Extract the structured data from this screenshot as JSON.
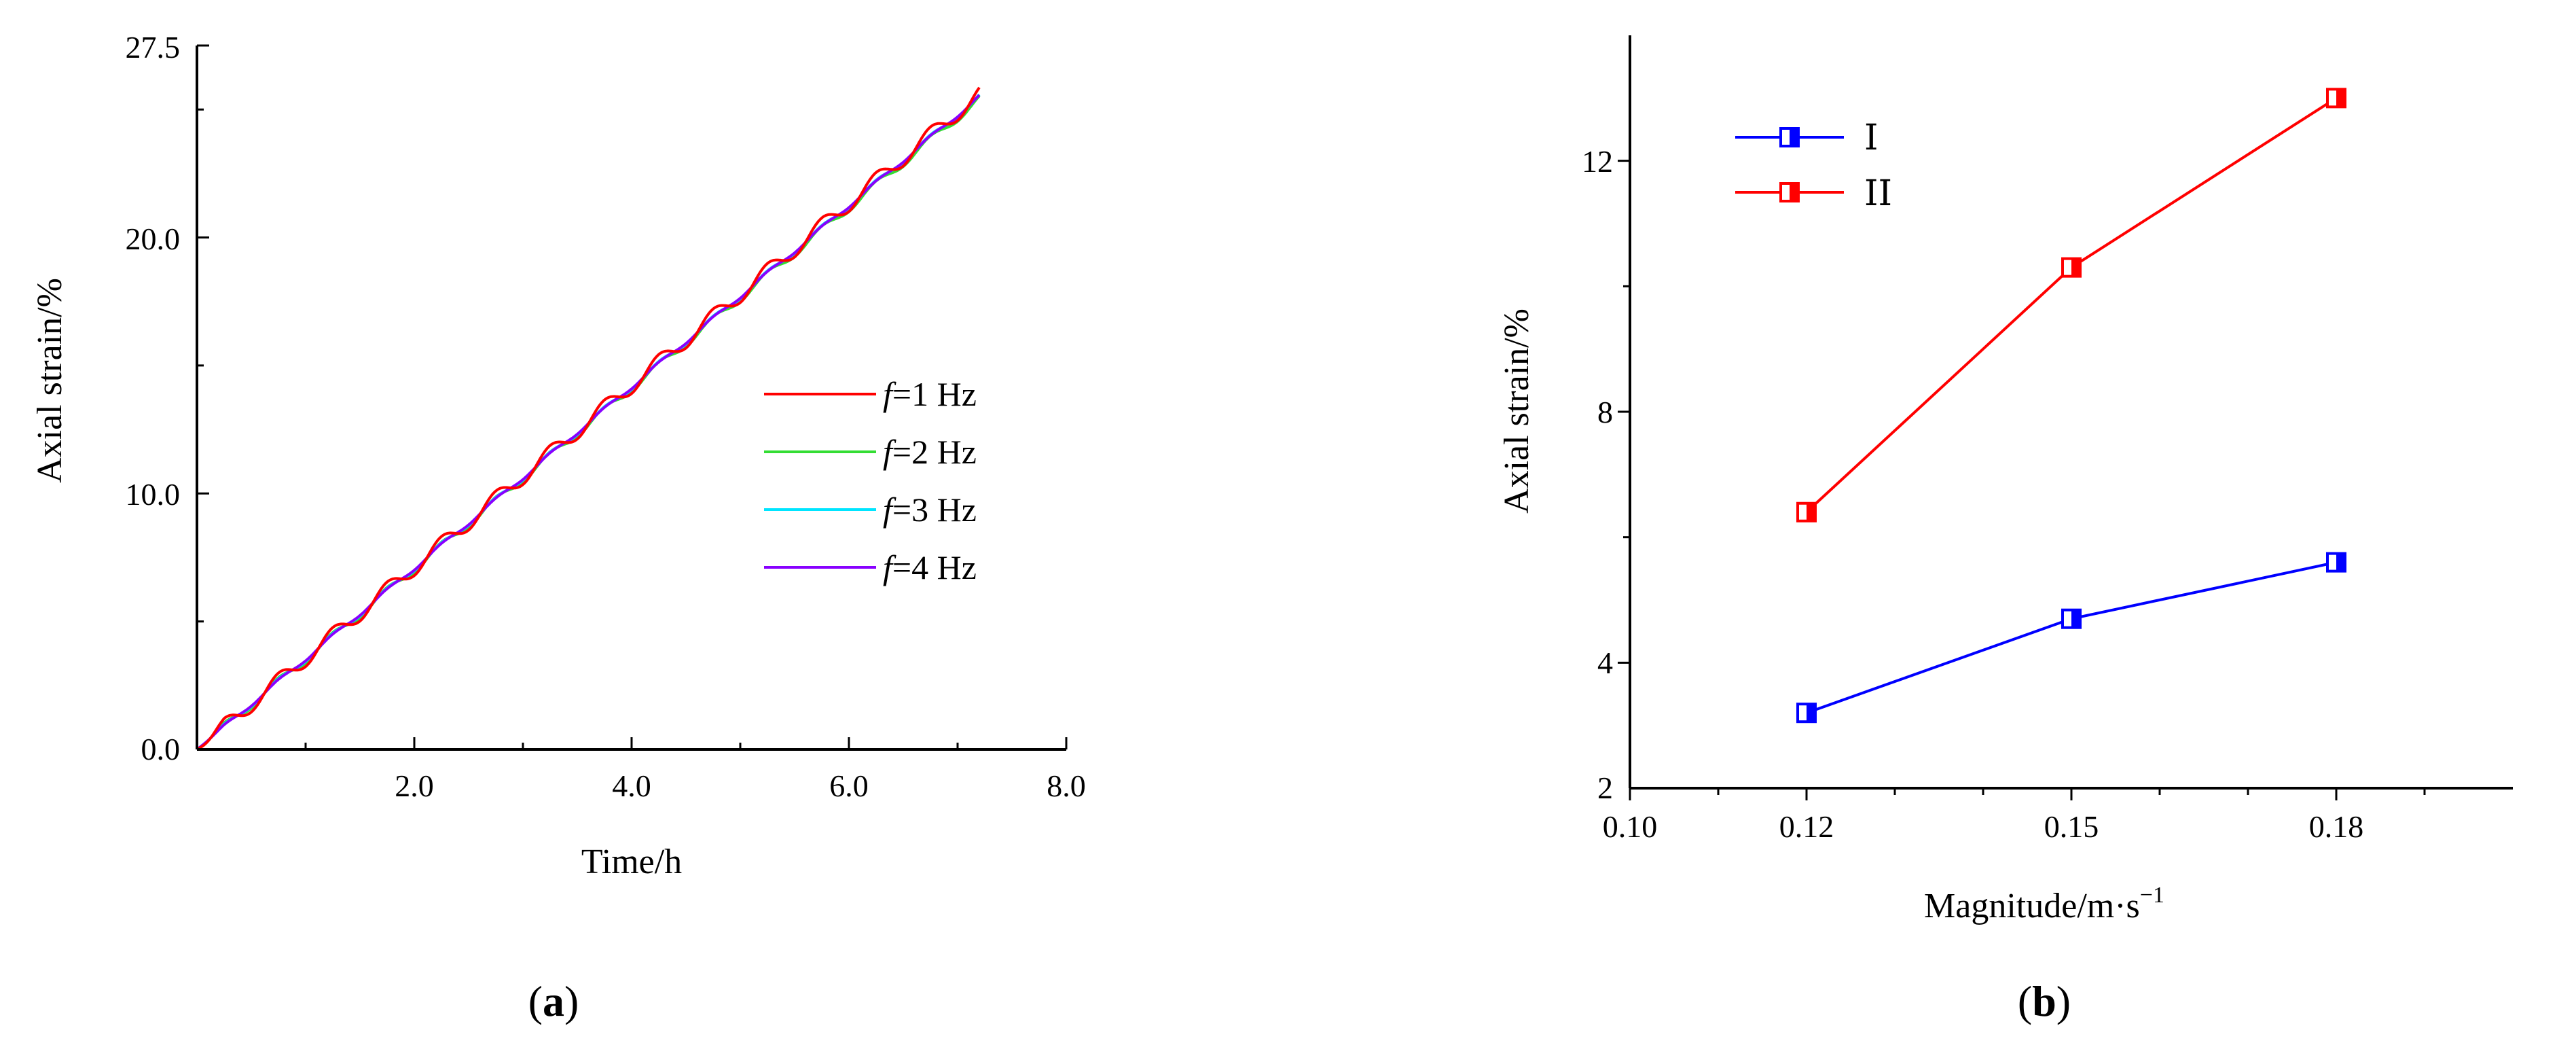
{
  "chart_data": [
    {
      "type": "line",
      "panel": "(a)",
      "panel_letter": "a",
      "xlabel": "Time/h",
      "ylabel": "Axial strain/%",
      "xlim": [
        0,
        8
      ],
      "ylim": [
        0,
        27.5
      ],
      "xticks": [
        2,
        4,
        6,
        8
      ],
      "xtick_labels": [
        "2.0",
        "4.0",
        "6.0",
        "8.0"
      ],
      "yticks": [
        0,
        10,
        20,
        27.5
      ],
      "ytick_labels": [
        "0.0",
        "10.0",
        "20.0",
        "27.5"
      ],
      "x_minor_step": 1,
      "y_minor_step": 5,
      "legend_position": "center-right",
      "series": [
        {
          "name": "f=1 Hz",
          "label_italic": "f",
          "label_rest": "=1 Hz",
          "color": "#ff0000",
          "frequency_hz": 1,
          "x_end": 7.2,
          "y_end": 25.6
        },
        {
          "name": "f=2 Hz",
          "label_italic": "f",
          "label_rest": "=2 Hz",
          "color": "#33dd33",
          "frequency_hz": 2,
          "x_end": 7.2,
          "y_end": 25.4
        },
        {
          "name": "f=3 Hz",
          "label_italic": "f",
          "label_rest": "=3 Hz",
          "color": "#00e5ff",
          "frequency_hz": 3,
          "x_end": 7.2,
          "y_end": 25.5
        },
        {
          "name": "f=4 Hz",
          "label_italic": "f",
          "label_rest": "=4 Hz",
          "color": "#8800ff",
          "frequency_hz": 4,
          "x_end": 7.2,
          "y_end": 25.5
        }
      ]
    },
    {
      "type": "line",
      "panel": "(b)",
      "panel_letter": "b",
      "xlabel_main": "Magnitude/m·s",
      "xlabel_sup": "−1",
      "ylabel": "Axial strain/%",
      "xlim": [
        0.1,
        0.2
      ],
      "ylim": [
        2,
        14
      ],
      "xticks": [
        0.1,
        0.12,
        0.15,
        0.18
      ],
      "xtick_labels": [
        "0.10",
        "0.12",
        "0.15",
        "0.18"
      ],
      "x_minor_step": 0.01,
      "yticks": [
        4,
        8,
        12
      ],
      "ytick_labels": [
        "4",
        "8",
        "12"
      ],
      "y_minor_step": 2,
      "y_axis_bottom_label": "2",
      "legend_position": "top-left",
      "categories": [
        0.12,
        0.15,
        0.18
      ],
      "series": [
        {
          "name": "Ⅰ",
          "color": "#0000ff",
          "values": [
            3.2,
            4.7,
            5.6
          ]
        },
        {
          "name": "ⅠⅠ",
          "color": "#ff0000",
          "values": [
            6.4,
            10.3,
            13.0
          ]
        }
      ]
    }
  ]
}
